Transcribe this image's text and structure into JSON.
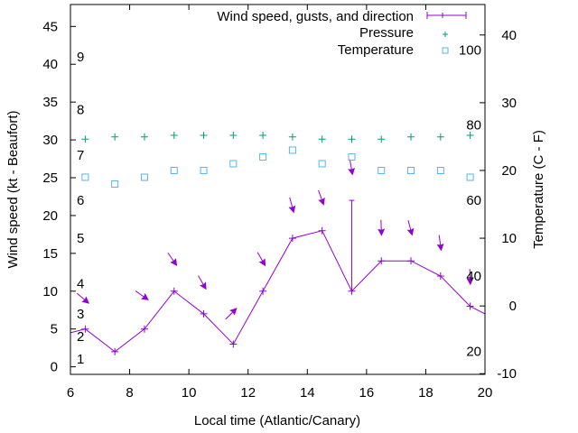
{
  "chart_data": {
    "type": "line",
    "xlabel": "Local time (Atlantic/Canary)",
    "ylabel": "Wind speed (kt - Beaufort)",
    "y2label": "Temperature (C - F)",
    "xlim": [
      6,
      20
    ],
    "ylim": [
      -1,
      47.9
    ],
    "y2lim": [
      -10.1,
      44.5
    ],
    "xticks": [
      6,
      8,
      10,
      12,
      14,
      16,
      18,
      20
    ],
    "yticks": [
      0,
      5,
      10,
      15,
      20,
      25,
      30,
      35,
      40,
      45
    ],
    "y2ticks": [
      -10,
      0,
      10,
      20,
      30,
      40
    ],
    "beaufort_labels": [
      {
        "label": "1",
        "kt": 1
      },
      {
        "label": "2",
        "kt": 4
      },
      {
        "label": "3",
        "kt": 7
      },
      {
        "label": "4",
        "kt": 11
      },
      {
        "label": "5",
        "kt": 17
      },
      {
        "label": "6",
        "kt": 22
      },
      {
        "label": "7",
        "kt": 28
      },
      {
        "label": "8",
        "kt": 34
      },
      {
        "label": "9",
        "kt": 41
      }
    ],
    "fahrenheit_labels": [
      {
        "label": "20",
        "c": -6.7
      },
      {
        "label": "40",
        "c": 4.4
      },
      {
        "label": "60",
        "c": 15.6
      },
      {
        "label": "80",
        "c": 26.7
      },
      {
        "label": "100",
        "c": 37.8
      }
    ],
    "legend": {
      "position": "top-right",
      "entries": [
        "Wind speed, gusts, and direction",
        "Pressure",
        "Temperature"
      ]
    },
    "colors": {
      "wind": "#9400d3",
      "pressure": "#009e73",
      "temperature": "#56b4e9"
    },
    "series": [
      {
        "name": "Wind speed, gusts, and direction",
        "x": [
          6.5,
          7.5,
          8.5,
          9.5,
          10.5,
          11.5,
          12.5,
          13.5,
          14.5,
          15.5,
          16.5,
          17.5,
          18.5,
          19.5
        ],
        "values": [
          5,
          2,
          5,
          10,
          7,
          3,
          10,
          17,
          18,
          10,
          14,
          14,
          12,
          8
        ],
        "line_ends": [
          {
            "x": 6,
            "y": 4.5
          },
          {
            "x": 20,
            "y": 7
          }
        ],
        "gusts": [
          {
            "x": 15.5,
            "y": 22
          }
        ],
        "arrows": [
          {
            "x": 6.5,
            "y": 8.8,
            "dir_deg": 40
          },
          {
            "x": 8.5,
            "y": 9.2,
            "dir_deg": 35
          },
          {
            "x": 9.5,
            "y": 13.9,
            "dir_deg": 55
          },
          {
            "x": 10.5,
            "y": 10.8,
            "dir_deg": 60
          },
          {
            "x": 11.5,
            "y": 7.3,
            "dir_deg": -45
          },
          {
            "x": 12.5,
            "y": 13.9,
            "dir_deg": 60
          },
          {
            "x": 13.5,
            "y": 21,
            "dir_deg": 75
          },
          {
            "x": 14.5,
            "y": 22,
            "dir_deg": 70
          },
          {
            "x": 15.5,
            "y": 26,
            "dir_deg": 80
          },
          {
            "x": 16.5,
            "y": 18,
            "dir_deg": 88
          },
          {
            "x": 17.5,
            "y": 18,
            "dir_deg": 75
          },
          {
            "x": 18.5,
            "y": 16,
            "dir_deg": 82
          },
          {
            "x": 19.5,
            "y": 11.5,
            "dir_deg": 88
          }
        ]
      },
      {
        "name": "Pressure",
        "x": [
          6.5,
          7.5,
          8.5,
          9.5,
          10.5,
          11.5,
          12.5,
          13.5,
          14.5,
          15.5,
          16.5,
          17.5,
          18.5,
          19.5
        ],
        "values": [
          30.1,
          30.4,
          30.4,
          30.6,
          30.6,
          30.6,
          30.6,
          30.4,
          30.1,
          30.1,
          30.1,
          30.4,
          30.4,
          30.6
        ]
      },
      {
        "name": "Temperature",
        "axis": "y2",
        "x": [
          6.5,
          7.5,
          8.5,
          9.5,
          10.5,
          11.5,
          12.5,
          13.5,
          14.5,
          15.5,
          16.5,
          17.5,
          18.5,
          19.5
        ],
        "values": [
          19,
          18,
          19,
          20,
          20,
          21,
          22,
          23,
          21,
          22,
          20,
          20,
          20,
          19
        ]
      }
    ]
  }
}
